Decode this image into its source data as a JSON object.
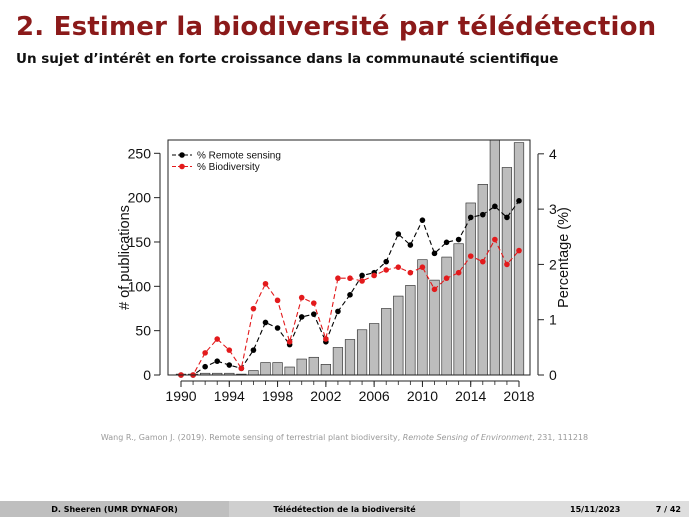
{
  "slide": {
    "title": "2. Estimer la biodiversité par télédétection",
    "subtitle": "Un sujet d’intérêt en forte croissance dans la communauté scientifique"
  },
  "reference": {
    "prefix": "Wang R., Gamon J. (2019). Remote sensing of terrestrial plant biodiversity,",
    "journal": "Remote Sensing of Environment",
    "suffix": ", 231, 111218"
  },
  "footer": {
    "author": "D. Sheeren (UMR DYNAFOR)",
    "title": "Télédétection de la biodiversité",
    "date": "15/11/2023",
    "page": "7 / 42"
  },
  "chart_data": {
    "type": "bar",
    "title": "",
    "xlabel": "",
    "ylabel": "# of publications",
    "y2label": "Percentage (%)",
    "x": [
      1990,
      1991,
      1992,
      1993,
      1994,
      1995,
      1996,
      1997,
      1998,
      1999,
      2000,
      2001,
      2002,
      2003,
      2004,
      2005,
      2006,
      2007,
      2008,
      2009,
      2010,
      2011,
      2012,
      2013,
      2014,
      2015,
      2016,
      2017,
      2018
    ],
    "xticks": [
      "1990",
      "1994",
      "1998",
      "2002",
      "2006",
      "2010",
      "2014",
      "2018"
    ],
    "ylim": [
      0,
      265
    ],
    "yticks": [
      "0",
      "50",
      "100",
      "150",
      "200",
      "250"
    ],
    "y2lim": [
      0,
      4.25
    ],
    "y2ticks": [
      "0",
      "1",
      "2",
      "3",
      "4"
    ],
    "bars": {
      "name": "# of publications",
      "color": "#bdbdbd",
      "values": [
        1,
        1,
        2,
        2,
        2,
        1,
        5,
        14,
        14,
        9,
        18,
        20,
        12,
        31,
        40,
        51,
        58,
        75,
        89,
        101,
        130,
        107,
        133,
        148,
        194,
        215,
        265,
        234,
        262
      ]
    },
    "series": [
      {
        "name": "% Remote sensing",
        "color": "#000000",
        "values": [
          0,
          0,
          0.15,
          0.25,
          0.18,
          0.12,
          0.45,
          0.95,
          0.85,
          0.55,
          1.05,
          1.1,
          0.6,
          1.15,
          1.45,
          1.8,
          1.85,
          2.05,
          2.55,
          2.35,
          2.8,
          2.2,
          2.4,
          2.45,
          2.85,
          2.9,
          3.05,
          2.85,
          3.15
        ]
      },
      {
        "name": "% Biodiversity",
        "color": "#e31a1c",
        "values": [
          0,
          0,
          0.4,
          0.65,
          0.45,
          0.12,
          1.2,
          1.65,
          1.35,
          0.6,
          1.4,
          1.3,
          0.65,
          1.75,
          1.75,
          1.7,
          1.8,
          1.9,
          1.95,
          1.85,
          1.95,
          1.55,
          1.75,
          1.85,
          2.15,
          2.05,
          2.45,
          2.0,
          2.25
        ]
      }
    ],
    "legend": "top-left"
  }
}
